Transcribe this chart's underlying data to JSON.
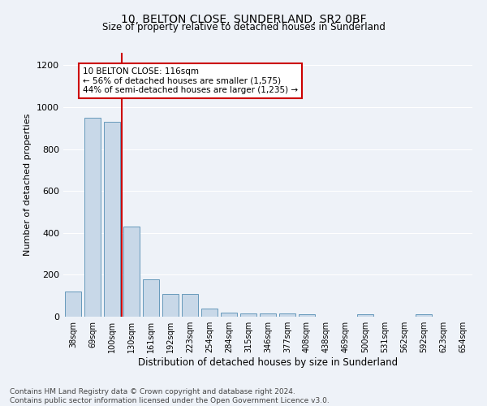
{
  "title1": "10, BELTON CLOSE, SUNDERLAND, SR2 0BF",
  "title2": "Size of property relative to detached houses in Sunderland",
  "xlabel": "Distribution of detached houses by size in Sunderland",
  "ylabel": "Number of detached properties",
  "footer1": "Contains HM Land Registry data © Crown copyright and database right 2024.",
  "footer2": "Contains public sector information licensed under the Open Government Licence v3.0.",
  "categories": [
    "38sqm",
    "69sqm",
    "100sqm",
    "130sqm",
    "161sqm",
    "192sqm",
    "223sqm",
    "254sqm",
    "284sqm",
    "315sqm",
    "346sqm",
    "377sqm",
    "408sqm",
    "438sqm",
    "469sqm",
    "500sqm",
    "531sqm",
    "562sqm",
    "592sqm",
    "623sqm",
    "654sqm"
  ],
  "values": [
    120,
    950,
    930,
    430,
    180,
    110,
    110,
    40,
    20,
    15,
    15,
    15,
    10,
    0,
    0,
    10,
    0,
    0,
    10,
    0,
    0
  ],
  "bar_color": "#c8d8e8",
  "bar_edge_color": "#6699bb",
  "red_line_x": 2.5,
  "annotation_text": "10 BELTON CLOSE: 116sqm\n← 56% of detached houses are smaller (1,575)\n44% of semi-detached houses are larger (1,235) →",
  "annotation_box_color": "#ffffff",
  "annotation_box_edge": "#cc0000",
  "red_line_color": "#cc0000",
  "ylim": [
    0,
    1260
  ],
  "yticks": [
    0,
    200,
    400,
    600,
    800,
    1000,
    1200
  ],
  "background_color": "#eef2f8",
  "grid_color": "#ffffff"
}
